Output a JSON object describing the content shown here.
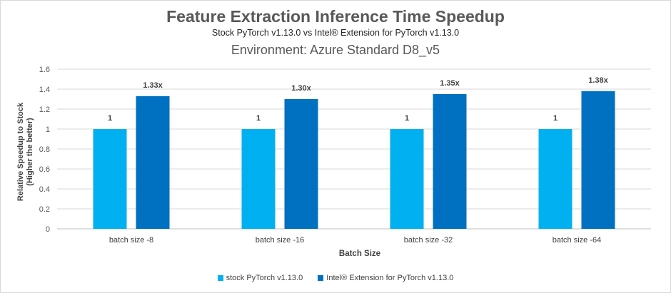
{
  "chart_data": {
    "type": "bar",
    "title": "Feature Extraction Inference Time Speedup",
    "subtitle": "Stock PyTorch v1.13.0 vs Intel® Extension for PyTorch v1.13.0",
    "environment": "Environment: Azure Standard D8_v5",
    "xlabel": "Batch Size",
    "ylabel_line1": "Relative Speedup to Stock",
    "ylabel_line2": "(Higher the better)",
    "ylim": [
      0,
      1.6
    ],
    "yticks": [
      0,
      0.2,
      0.4,
      0.6,
      0.8,
      1,
      1.2,
      1.4,
      1.6
    ],
    "ytick_labels": [
      "0",
      "0.2",
      "0.4",
      "0.6",
      "0.8",
      "1",
      "1.2",
      "1.4",
      "1.6"
    ],
    "grid": true,
    "legend_position": "bottom",
    "categories": [
      "batch size -8",
      "batch size -16",
      "batch size -32",
      "batch size -64"
    ],
    "series": [
      {
        "name": "stock PyTorch v1.13.0",
        "color": "#00b0f0",
        "values": [
          1,
          1,
          1,
          1
        ],
        "labels": [
          "1",
          "1",
          "1",
          "1"
        ]
      },
      {
        "name": "Intel® Extension for PyTorch v1.13.0",
        "color": "#0070c0",
        "values": [
          1.33,
          1.3,
          1.35,
          1.38
        ],
        "labels": [
          "1.33x",
          "1.30x",
          "1.35x",
          "1.38x"
        ]
      }
    ]
  }
}
